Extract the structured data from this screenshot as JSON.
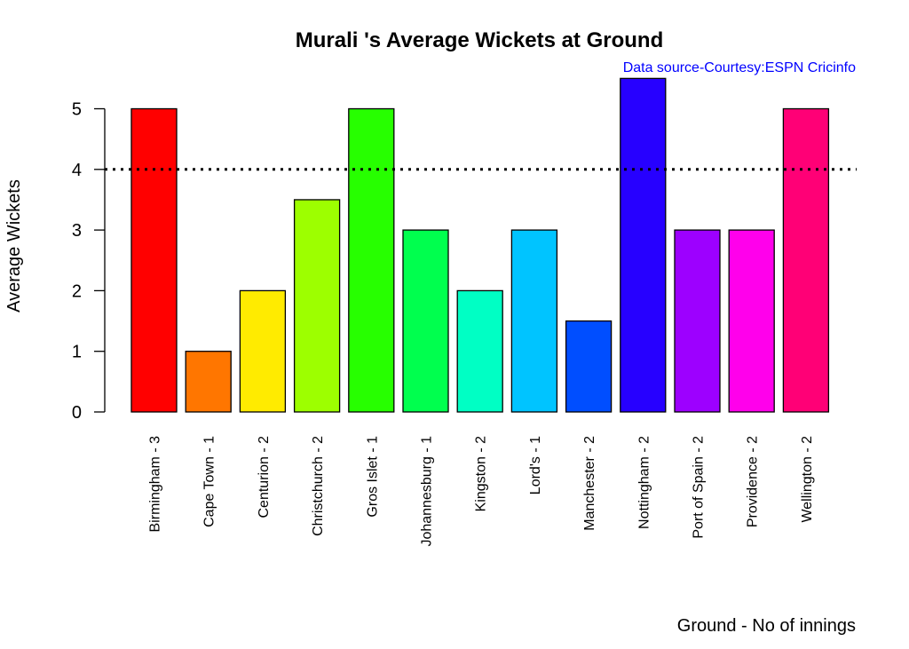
{
  "chart_data": {
    "type": "bar",
    "title": "Murali 's Average Wickets at Ground",
    "subtitle": "Data source-Courtesy:ESPN Cricinfo",
    "xlabel": "Ground - No of innings",
    "ylabel": "Average Wickets",
    "ylim": [
      0,
      5.5
    ],
    "yticks": [
      0,
      1,
      2,
      3,
      4,
      5
    ],
    "reference_line": 4,
    "categories": [
      "Birmingham - 3",
      "Cape Town - 1",
      "Centurion - 2",
      "Christchurch - 2",
      "Gros Islet - 1",
      "Johannesburg - 1",
      "Kingston - 2",
      "Lord's - 1",
      "Manchester - 2",
      "Nottingham - 2",
      "Port of Spain - 2",
      "Providence - 2",
      "Wellington - 2"
    ],
    "values": [
      5,
      1,
      2,
      3.5,
      5,
      3,
      2,
      3,
      1.5,
      5.5,
      3,
      3,
      5
    ],
    "colors": [
      "#FF0000",
      "#FF7600",
      "#FFEB00",
      "#9DFF00",
      "#27FF00",
      "#00FF4E",
      "#00FFC4",
      "#00C4FF",
      "#004EFF",
      "#2700FF",
      "#9D00FF",
      "#FF00EB",
      "#FF0076"
    ],
    "subtitle_color": "#0000FF",
    "grid": false,
    "legend": "none"
  }
}
